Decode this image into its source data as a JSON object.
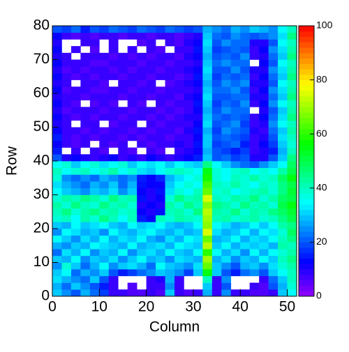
{
  "chart_data": {
    "type": "heatmap",
    "x_label": "Column",
    "y_label": "Row",
    "xlim": [
      0,
      52
    ],
    "ylim": [
      0,
      80
    ],
    "xticks": [
      0,
      10,
      20,
      30,
      40,
      50
    ],
    "yticks": [
      0,
      10,
      20,
      30,
      40,
      50,
      60,
      70,
      80
    ],
    "zlim": [
      0,
      100
    ],
    "zticks": [
      0,
      20,
      40,
      60,
      80,
      100
    ],
    "z": [
      [
        30,
        25,
        20,
        28,
        22,
        18,
        8,
        8,
        6,
        6,
        8,
        6,
        30,
        8,
        6,
        8,
        28,
        8,
        25,
        8,
        8,
        6,
        6,
        8,
        30,
        35
      ],
      [
        28,
        22,
        30,
        25,
        20,
        15,
        8,
        null,
        6,
        null,
        8,
        8,
        25,
        8,
        null,
        null,
        30,
        8,
        20,
        null,
        null,
        8,
        6,
        20,
        28,
        38
      ],
      [
        32,
        28,
        25,
        22,
        30,
        20,
        8,
        null,
        null,
        null,
        8,
        10,
        28,
        8,
        null,
        null,
        40,
        8,
        25,
        null,
        null,
        null,
        8,
        22,
        30,
        40
      ],
      [
        30,
        35,
        22,
        28,
        25,
        30,
        20,
        15,
        18,
        22,
        25,
        30,
        28,
        25,
        18,
        30,
        55,
        30,
        20,
        15,
        22,
        25,
        20,
        30,
        35,
        40
      ],
      [
        25,
        38,
        30,
        22,
        28,
        35,
        25,
        30,
        32,
        28,
        22,
        35,
        30,
        28,
        25,
        32,
        65,
        30,
        25,
        20,
        28,
        30,
        25,
        32,
        38,
        42
      ],
      [
        30,
        28,
        35,
        25,
        30,
        28,
        32,
        25,
        30,
        35,
        28,
        30,
        25,
        32,
        30,
        28,
        70,
        28,
        32,
        25,
        30,
        28,
        35,
        30,
        40,
        45
      ],
      [
        22,
        32,
        28,
        35,
        25,
        30,
        28,
        35,
        25,
        30,
        32,
        28,
        35,
        30,
        28,
        35,
        60,
        35,
        28,
        32,
        25,
        35,
        28,
        35,
        38,
        42
      ],
      [
        28,
        25,
        30,
        28,
        35,
        32,
        30,
        28,
        35,
        28,
        30,
        32,
        28,
        35,
        32,
        30,
        72,
        30,
        35,
        28,
        32,
        30,
        32,
        28,
        42,
        40
      ],
      [
        35,
        30,
        25,
        32,
        28,
        35,
        28,
        32,
        30,
        35,
        28,
        25,
        32,
        28,
        35,
        32,
        65,
        28,
        30,
        35,
        28,
        32,
        30,
        35,
        40,
        45
      ],
      [
        25,
        35,
        32,
        28,
        30,
        25,
        35,
        30,
        28,
        32,
        35,
        30,
        28,
        32,
        28,
        30,
        75,
        32,
        28,
        30,
        35,
        28,
        35,
        32,
        38,
        48
      ],
      [
        30,
        28,
        35,
        30,
        32,
        35,
        30,
        28,
        35,
        30,
        32,
        35,
        30,
        28,
        30,
        35,
        68,
        35,
        32,
        28,
        30,
        35,
        30,
        35,
        42,
        45
      ],
      [
        38,
        40,
        35,
        42,
        38,
        45,
        40,
        35,
        40,
        15,
        12,
        40,
        38,
        42,
        40,
        38,
        70,
        40,
        42,
        38,
        40,
        42,
        38,
        40,
        45,
        50
      ],
      [
        40,
        45,
        38,
        42,
        45,
        40,
        42,
        38,
        40,
        12,
        10,
        14,
        40,
        42,
        38,
        45,
        72,
        42,
        40,
        45,
        38,
        42,
        40,
        45,
        48,
        52
      ],
      [
        42,
        38,
        45,
        40,
        38,
        45,
        40,
        42,
        38,
        10,
        12,
        10,
        42,
        38,
        45,
        40,
        68,
        45,
        42,
        38,
        45,
        40,
        42,
        38,
        50,
        55
      ],
      [
        38,
        42,
        40,
        45,
        42,
        38,
        45,
        40,
        42,
        14,
        10,
        12,
        38,
        45,
        40,
        42,
        75,
        40,
        38,
        42,
        40,
        45,
        38,
        42,
        48,
        50
      ],
      [
        35,
        30,
        28,
        25,
        30,
        28,
        32,
        25,
        30,
        12,
        10,
        14,
        32,
        38,
        35,
        40,
        65,
        38,
        40,
        35,
        38,
        40,
        42,
        38,
        45,
        52
      ],
      [
        32,
        28,
        25,
        22,
        28,
        25,
        30,
        22,
        28,
        14,
        12,
        12,
        30,
        35,
        38,
        35,
        62,
        40,
        38,
        42,
        38,
        35,
        40,
        38,
        45,
        50
      ],
      [
        38,
        25,
        22,
        25,
        22,
        28,
        25,
        22,
        25,
        15,
        12,
        16,
        28,
        32,
        35,
        38,
        58,
        38,
        35,
        40,
        38,
        42,
        38,
        40,
        48,
        55
      ],
      [
        40,
        35,
        38,
        40,
        35,
        38,
        42,
        35,
        38,
        32,
        30,
        35,
        38,
        40,
        38,
        35,
        55,
        38,
        35,
        38,
        40,
        35,
        38,
        35,
        42,
        50
      ],
      [
        35,
        38,
        30,
        35,
        38,
        32,
        35,
        38,
        30,
        35,
        32,
        35,
        30,
        35,
        32,
        30,
        45,
        35,
        30,
        25,
        22,
        20,
        25,
        30,
        35,
        48
      ],
      [
        20,
        10,
        12,
        10,
        8,
        10,
        12,
        8,
        10,
        8,
        12,
        10,
        8,
        10,
        12,
        15,
        30,
        20,
        22,
        18,
        20,
        10,
        10,
        20,
        30,
        45
      ],
      [
        15,
        null,
        8,
        null,
        8,
        6,
        null,
        8,
        6,
        null,
        8,
        6,
        null,
        8,
        10,
        12,
        28,
        20,
        18,
        15,
        18,
        8,
        10,
        15,
        28,
        40
      ],
      [
        12,
        8,
        6,
        8,
        null,
        8,
        6,
        8,
        null,
        8,
        6,
        8,
        8,
        10,
        8,
        14,
        30,
        18,
        20,
        22,
        15,
        8,
        12,
        18,
        30,
        38
      ],
      [
        15,
        8,
        6,
        8,
        6,
        8,
        8,
        6,
        8,
        6,
        8,
        8,
        6,
        8,
        8,
        12,
        30,
        20,
        22,
        20,
        18,
        8,
        10,
        20,
        32,
        40
      ],
      [
        12,
        8,
        8,
        6,
        8,
        6,
        8,
        8,
        6,
        8,
        6,
        8,
        8,
        6,
        10,
        14,
        28,
        18,
        25,
        22,
        20,
        10,
        8,
        22,
        30,
        42
      ],
      [
        10,
        8,
        null,
        8,
        8,
        null,
        6,
        8,
        8,
        null,
        8,
        6,
        8,
        8,
        8,
        12,
        32,
        20,
        22,
        25,
        18,
        8,
        10,
        25,
        35,
        40
      ],
      [
        12,
        8,
        6,
        8,
        6,
        8,
        8,
        6,
        8,
        8,
        6,
        8,
        6,
        8,
        10,
        10,
        30,
        22,
        20,
        22,
        20,
        8,
        12,
        22,
        32,
        45
      ],
      [
        10,
        6,
        8,
        8,
        8,
        6,
        8,
        8,
        6,
        8,
        8,
        6,
        8,
        6,
        8,
        12,
        28,
        20,
        25,
        22,
        22,
        null,
        10,
        20,
        30,
        42
      ],
      [
        12,
        8,
        6,
        null,
        6,
        8,
        6,
        null,
        8,
        6,
        null,
        8,
        6,
        8,
        8,
        14,
        30,
        18,
        22,
        20,
        25,
        8,
        12,
        25,
        35,
        40
      ],
      [
        10,
        8,
        8,
        6,
        8,
        8,
        8,
        6,
        8,
        8,
        6,
        8,
        8,
        6,
        10,
        12,
        32,
        20,
        20,
        22,
        22,
        10,
        10,
        22,
        30,
        45
      ],
      [
        12,
        6,
        8,
        8,
        6,
        6,
        8,
        8,
        6,
        8,
        8,
        6,
        8,
        8,
        8,
        10,
        30,
        22,
        22,
        25,
        20,
        8,
        12,
        25,
        32,
        42
      ],
      [
        10,
        8,
        null,
        8,
        8,
        6,
        null,
        8,
        8,
        6,
        8,
        null,
        6,
        8,
        10,
        12,
        28,
        20,
        25,
        22,
        25,
        10,
        10,
        20,
        35,
        40
      ],
      [
        12,
        8,
        6,
        8,
        6,
        8,
        8,
        6,
        8,
        8,
        6,
        8,
        8,
        6,
        8,
        14,
        30,
        18,
        22,
        20,
        22,
        8,
        12,
        22,
        30,
        45
      ],
      [
        10,
        6,
        8,
        6,
        8,
        8,
        6,
        8,
        6,
        8,
        8,
        6,
        8,
        8,
        10,
        12,
        32,
        20,
        20,
        25,
        20,
        10,
        10,
        25,
        32,
        42
      ],
      [
        12,
        8,
        8,
        8,
        6,
        6,
        8,
        8,
        8,
        6,
        8,
        8,
        6,
        8,
        8,
        10,
        30,
        22,
        25,
        22,
        22,
        null,
        12,
        20,
        35,
        40
      ],
      [
        10,
        8,
        null,
        8,
        8,
        8,
        6,
        8,
        6,
        8,
        6,
        8,
        8,
        6,
        10,
        12,
        28,
        20,
        22,
        20,
        25,
        8,
        10,
        22,
        30,
        45
      ],
      [
        12,
        null,
        8,
        null,
        6,
        null,
        8,
        null,
        8,
        null,
        8,
        6,
        null,
        8,
        8,
        14,
        30,
        18,
        20,
        22,
        20,
        8,
        12,
        25,
        32,
        42
      ],
      [
        10,
        null,
        null,
        8,
        8,
        null,
        8,
        null,
        null,
        6,
        8,
        null,
        8,
        6,
        10,
        12,
        32,
        20,
        25,
        22,
        22,
        10,
        10,
        20,
        35,
        40
      ],
      [
        12,
        8,
        6,
        8,
        6,
        8,
        8,
        6,
        8,
        8,
        6,
        8,
        8,
        6,
        8,
        10,
        30,
        22,
        20,
        25,
        22,
        20,
        22,
        25,
        32,
        45
      ],
      [
        20,
        18,
        22,
        15,
        20,
        18,
        22,
        20,
        18,
        22,
        20,
        18,
        22,
        20,
        18,
        20,
        28,
        25,
        22,
        28,
        25,
        30,
        28,
        25,
        35,
        40
      ]
    ]
  }
}
